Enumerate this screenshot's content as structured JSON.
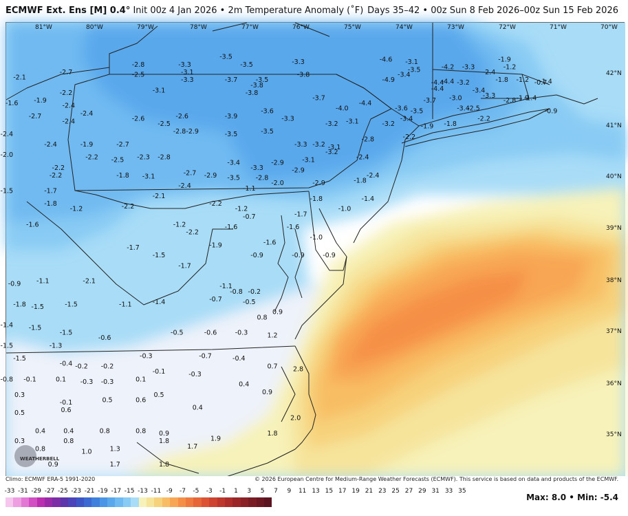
{
  "header": {
    "model": "ECMWF Ext. Ens [M] 0.4°",
    "description": "Init 00z 4 Jan 2026 • 2m Temperature Anomaly (˚F)",
    "valid": "Days 35–42 • 00z Sun 8 Feb 2026–00z Sun 15 Feb 2026"
  },
  "footer": {
    "climo": "Climo: ECMWF ERA-5 1991-2020",
    "copyright": "© 2026 European Centre for Medium-Range Weather Forecasts (ECMWF). This service is based on data and products of the ECMWF.",
    "max_label": "Max:",
    "max_value": "8.0",
    "min_label": "Min:",
    "min_value": "-5.4"
  },
  "logo": {
    "text": "WEATHERBELL"
  },
  "longitude_labels": [
    "81°W",
    "80°W",
    "79°W",
    "78°W",
    "77°W",
    "76°W",
    "75°W",
    "74°W",
    "73°W",
    "72°W",
    "71°W",
    "70°W"
  ],
  "latitude_labels": [
    "42°N",
    "41°N",
    "40°N",
    "39°N",
    "38°N",
    "37°N",
    "36°N",
    "35°N"
  ],
  "colorbar": {
    "labels": [
      "-33",
      "-31",
      "-29",
      "-27",
      "-25",
      "-23",
      "-21",
      "-19",
      "-17",
      "-15",
      "-13",
      "-11",
      "-9",
      "-7",
      "-5",
      "-3",
      "-1",
      "1",
      "3",
      "5",
      "7",
      "9",
      "11",
      "13",
      "15",
      "17",
      "19",
      "21",
      "23",
      "25",
      "27",
      "29",
      "31",
      "33",
      "35"
    ],
    "colors": [
      "#f7c6ef",
      "#ee9fe2",
      "#e277d4",
      "#d24fc3",
      "#b92fb0",
      "#9b2aa8",
      "#7d2ea6",
      "#5e36ab",
      "#4a44b8",
      "#3c56c5",
      "#3a6ad2",
      "#3f80dd",
      "#4b95e6",
      "#5aa8ec",
      "#6fbaf1",
      "#88cbf4",
      "#a8dcf7",
      "#f7f2b9",
      "#f6e49b",
      "#f7d27c",
      "#f8bd64",
      "#f8a653",
      "#f58f47",
      "#ef7a3f",
      "#e66638",
      "#db5333",
      "#cd432f",
      "#bd372c",
      "#ac2d2a",
      "#9b2628",
      "#8a2126",
      "#7a1c24",
      "#6b1822",
      "#5c1420"
    ]
  },
  "map_values": [
    {
      "lon": -81.3,
      "lat": 41.9,
      "v": "-2.1"
    },
    {
      "lon": -80.4,
      "lat": 42.0,
      "v": "-2.7"
    },
    {
      "lon": -79.0,
      "lat": 42.15,
      "v": "-2.8"
    },
    {
      "lon": -79.0,
      "lat": 41.95,
      "v": "-2.5"
    },
    {
      "lon": -80.4,
      "lat": 41.6,
      "v": "-2.2"
    },
    {
      "lon": -81.45,
      "lat": 41.4,
      "v": "-1.6"
    },
    {
      "lon": -80.9,
      "lat": 41.45,
      "v": "-1.9"
    },
    {
      "lon": -80.35,
      "lat": 41.35,
      "v": "-2.4"
    },
    {
      "lon": -80.0,
      "lat": 41.2,
      "v": "-2.4"
    },
    {
      "lon": -81.0,
      "lat": 41.15,
      "v": "-2.7"
    },
    {
      "lon": -80.35,
      "lat": 41.05,
      "v": "-2.4"
    },
    {
      "lon": -81.55,
      "lat": 40.8,
      "v": "-2.4"
    },
    {
      "lon": -80.7,
      "lat": 40.6,
      "v": "-2.4"
    },
    {
      "lon": -80.0,
      "lat": 40.6,
      "v": "-1.9"
    },
    {
      "lon": -81.55,
      "lat": 40.4,
      "v": "-2.0"
    },
    {
      "lon": -79.9,
      "lat": 40.35,
      "v": "-2.2"
    },
    {
      "lon": -80.55,
      "lat": 40.15,
      "v": "-2.2"
    },
    {
      "lon": -79.4,
      "lat": 40.3,
      "v": "-2.5"
    },
    {
      "lon": -79.3,
      "lat": 40.6,
      "v": "-2.7"
    },
    {
      "lon": -78.9,
      "lat": 40.35,
      "v": "-2.3"
    },
    {
      "lon": -78.5,
      "lat": 40.35,
      "v": "-2.8"
    },
    {
      "lon": -79.0,
      "lat": 41.1,
      "v": "-2.6"
    },
    {
      "lon": -78.5,
      "lat": 41.0,
      "v": "-2.5"
    },
    {
      "lon": -78.2,
      "lat": 40.85,
      "v": "-2.8"
    },
    {
      "lon": -77.95,
      "lat": 40.85,
      "v": "-2.9"
    },
    {
      "lon": -78.6,
      "lat": 41.65,
      "v": "-3.1"
    },
    {
      "lon": -78.05,
      "lat": 41.85,
      "v": "-3.3"
    },
    {
      "lon": -78.1,
      "lat": 42.15,
      "v": "-3.3"
    },
    {
      "lon": -78.05,
      "lat": 42.0,
      "v": "-3.1"
    },
    {
      "lon": -78.15,
      "lat": 41.15,
      "v": "-2.6"
    },
    {
      "lon": -77.3,
      "lat": 42.3,
      "v": "-3.5"
    },
    {
      "lon": -76.9,
      "lat": 42.15,
      "v": "-3.5"
    },
    {
      "lon": -77.2,
      "lat": 41.85,
      "v": "-3.7"
    },
    {
      "lon": -76.6,
      "lat": 41.85,
      "v": "-3.5"
    },
    {
      "lon": -76.7,
      "lat": 41.75,
      "v": "-3.8"
    },
    {
      "lon": -76.8,
      "lat": 41.6,
      "v": "-3.8"
    },
    {
      "lon": -75.9,
      "lat": 42.2,
      "v": "-3.3"
    },
    {
      "lon": -75.8,
      "lat": 41.95,
      "v": "-3.8"
    },
    {
      "lon": -77.2,
      "lat": 41.15,
      "v": "-3.9"
    },
    {
      "lon": -76.5,
      "lat": 41.25,
      "v": "-3.6"
    },
    {
      "lon": -76.1,
      "lat": 41.1,
      "v": "-3.3"
    },
    {
      "lon": -77.2,
      "lat": 40.8,
      "v": "-3.5"
    },
    {
      "lon": -76.5,
      "lat": 40.85,
      "v": "-3.5"
    },
    {
      "lon": -75.85,
      "lat": 40.6,
      "v": "-3.3"
    },
    {
      "lon": -77.15,
      "lat": 40.25,
      "v": "-3.4"
    },
    {
      "lon": -76.7,
      "lat": 40.15,
      "v": "-3.3"
    },
    {
      "lon": -76.3,
      "lat": 40.25,
      "v": "-2.9"
    },
    {
      "lon": -77.15,
      "lat": 39.95,
      "v": "-3.5"
    },
    {
      "lon": -76.6,
      "lat": 39.95,
      "v": "-2.8"
    },
    {
      "lon": -75.5,
      "lat": 41.5,
      "v": "-3.7"
    },
    {
      "lon": -75.05,
      "lat": 41.3,
      "v": "-4.0"
    },
    {
      "lon": -74.6,
      "lat": 41.4,
      "v": "-4.4"
    },
    {
      "lon": -75.25,
      "lat": 41.0,
      "v": "-3.2"
    },
    {
      "lon": -74.85,
      "lat": 41.05,
      "v": "-3.1"
    },
    {
      "lon": -75.5,
      "lat": 40.6,
      "v": "-3.2"
    },
    {
      "lon": -75.2,
      "lat": 40.55,
      "v": "-3.1"
    },
    {
      "lon": -75.25,
      "lat": 40.45,
      "v": "-3.2"
    },
    {
      "lon": -75.7,
      "lat": 40.3,
      "v": "-3.1"
    },
    {
      "lon": -74.65,
      "lat": 40.35,
      "v": "-2.4"
    },
    {
      "lon": -74.55,
      "lat": 40.7,
      "v": "-2.8"
    },
    {
      "lon": -75.9,
      "lat": 40.1,
      "v": "-2.9"
    },
    {
      "lon": -75.5,
      "lat": 39.85,
      "v": "-2.9"
    },
    {
      "lon": -75.55,
      "lat": 39.55,
      "v": "-1.8"
    },
    {
      "lon": -74.7,
      "lat": 39.9,
      "v": "-1.8"
    },
    {
      "lon": -74.55,
      "lat": 39.55,
      "v": "-1.4"
    },
    {
      "lon": -74.45,
      "lat": 40.0,
      "v": "-2.4"
    },
    {
      "lon": -75.0,
      "lat": 39.35,
      "v": "-1.0"
    },
    {
      "lon": -75.85,
      "lat": 39.25,
      "v": "-1.7"
    },
    {
      "lon": -76.0,
      "lat": 39.0,
      "v": "-1.6"
    },
    {
      "lon": -75.55,
      "lat": 38.8,
      "v": "-1.0"
    },
    {
      "lon": -75.9,
      "lat": 38.45,
      "v": "-0.9"
    },
    {
      "lon": -75.3,
      "lat": 38.45,
      "v": "-0.9"
    },
    {
      "lon": -76.45,
      "lat": 38.7,
      "v": "-1.6"
    },
    {
      "lon": -76.7,
      "lat": 38.45,
      "v": "-0.9"
    },
    {
      "lon": -74.2,
      "lat": 42.25,
      "v": "-4.6"
    },
    {
      "lon": -74.15,
      "lat": 41.85,
      "v": "-4.9"
    },
    {
      "lon": -73.85,
      "lat": 41.95,
      "v": "-3.4"
    },
    {
      "lon": -73.7,
      "lat": 42.2,
      "v": "-3.1"
    },
    {
      "lon": -73.65,
      "lat": 42.05,
      "v": "-3.5"
    },
    {
      "lon": -73.0,
      "lat": 42.1,
      "v": "-4.2"
    },
    {
      "lon": -72.6,
      "lat": 42.1,
      "v": "-3.3"
    },
    {
      "lon": -72.2,
      "lat": 42.0,
      "v": "-2.4"
    },
    {
      "lon": -73.2,
      "lat": 41.8,
      "v": "-4.4"
    },
    {
      "lon": -73.0,
      "lat": 41.82,
      "v": "-4.4"
    },
    {
      "lon": -73.2,
      "lat": 41.68,
      "v": "-4.4"
    },
    {
      "lon": -72.7,
      "lat": 41.8,
      "v": "-3.2"
    },
    {
      "lon": -73.35,
      "lat": 41.45,
      "v": "-3.7"
    },
    {
      "lon": -72.85,
      "lat": 41.5,
      "v": "-3.0"
    },
    {
      "lon": -72.4,
      "lat": 41.65,
      "v": "-3.4"
    },
    {
      "lon": -72.2,
      "lat": 41.55,
      "v": "-3.3"
    },
    {
      "lon": -71.8,
      "lat": 41.45,
      "v": "-2.8"
    },
    {
      "lon": -71.55,
      "lat": 41.5,
      "v": "-1.9"
    },
    {
      "lon": -71.4,
      "lat": 41.5,
      "v": "-1.4"
    },
    {
      "lon": -71.9,
      "lat": 42.25,
      "v": "-1.9"
    },
    {
      "lon": -71.8,
      "lat": 42.1,
      "v": "-1.2"
    },
    {
      "lon": -71.95,
      "lat": 41.85,
      "v": "-1.8"
    },
    {
      "lon": -71.55,
      "lat": 41.85,
      "v": "-1.2"
    },
    {
      "lon": -71.2,
      "lat": 41.8,
      "v": "-0.7"
    },
    {
      "lon": -71.1,
      "lat": 41.82,
      "v": "-1.4"
    },
    {
      "lon": -71.0,
      "lat": 41.25,
      "v": "-0.9"
    },
    {
      "lon": -73.9,
      "lat": 41.3,
      "v": "-3.6"
    },
    {
      "lon": -73.6,
      "lat": 41.25,
      "v": "-3.5"
    },
    {
      "lon": -73.8,
      "lat": 41.1,
      "v": "-3.4"
    },
    {
      "lon": -72.7,
      "lat": 41.3,
      "v": "-3.4"
    },
    {
      "lon": -72.5,
      "lat": 41.3,
      "v": "-2.5"
    },
    {
      "lon": -72.3,
      "lat": 41.1,
      "v": "-2.2"
    },
    {
      "lon": -74.15,
      "lat": 41.0,
      "v": "-3.2"
    },
    {
      "lon": -73.4,
      "lat": 40.95,
      "v": "-1.9"
    },
    {
      "lon": -72.95,
      "lat": 41.0,
      "v": "-1.8"
    },
    {
      "lon": -73.75,
      "lat": 40.75,
      "v": "-2.2"
    },
    {
      "lon": -79.3,
      "lat": 40.0,
      "v": "-1.8"
    },
    {
      "lon": -78.8,
      "lat": 39.98,
      "v": "-3.1"
    },
    {
      "lon": -78.0,
      "lat": 40.05,
      "v": "-2.7"
    },
    {
      "lon": -77.6,
      "lat": 40.0,
      "v": "-2.9"
    },
    {
      "lon": -78.1,
      "lat": 39.8,
      "v": "-2.4"
    },
    {
      "lon": -80.6,
      "lat": 40.0,
      "v": "-2.2"
    },
    {
      "lon": -81.55,
      "lat": 39.7,
      "v": "-1.5"
    },
    {
      "lon": -80.7,
      "lat": 39.7,
      "v": "-1.7"
    },
    {
      "lon": -80.7,
      "lat": 39.45,
      "v": "-1.8"
    },
    {
      "lon": -80.2,
      "lat": 39.35,
      "v": "-1.2"
    },
    {
      "lon": -79.2,
      "lat": 39.4,
      "v": "-2.2"
    },
    {
      "lon": -78.6,
      "lat": 39.6,
      "v": "-2.1"
    },
    {
      "lon": -77.5,
      "lat": 39.45,
      "v": "-2.2"
    },
    {
      "lon": -77.0,
      "lat": 39.35,
      "v": "-1.2"
    },
    {
      "lon": -76.85,
      "lat": 39.2,
      "v": "-0.7"
    },
    {
      "lon": -76.85,
      "lat": 39.75,
      "v": "-1.1"
    },
    {
      "lon": -76.3,
      "lat": 39.85,
      "v": "-2.0"
    },
    {
      "lon": -77.2,
      "lat": 39.0,
      "v": "-1.6"
    },
    {
      "lon": -81.05,
      "lat": 39.05,
      "v": "-1.6"
    },
    {
      "lon": -78.2,
      "lat": 39.05,
      "v": "-1.2"
    },
    {
      "lon": -77.95,
      "lat": 38.9,
      "v": "-2.2"
    },
    {
      "lon": -77.5,
      "lat": 38.65,
      "v": "-1.9"
    },
    {
      "lon": -79.1,
      "lat": 38.6,
      "v": "-1.7"
    },
    {
      "lon": -78.6,
      "lat": 38.45,
      "v": "-1.5"
    },
    {
      "lon": -78.1,
      "lat": 38.25,
      "v": "-1.7"
    },
    {
      "lon": -81.4,
      "lat": 37.9,
      "v": "-0.9"
    },
    {
      "lon": -80.85,
      "lat": 37.95,
      "v": "-1.1"
    },
    {
      "lon": -79.95,
      "lat": 37.95,
      "v": "-2.1"
    },
    {
      "lon": -77.3,
      "lat": 37.85,
      "v": "-1.1"
    },
    {
      "lon": -77.1,
      "lat": 37.75,
      "v": "-0.8"
    },
    {
      "lon": -76.75,
      "lat": 37.75,
      "v": "-0.2"
    },
    {
      "lon": -77.5,
      "lat": 37.6,
      "v": "-0.7"
    },
    {
      "lon": -76.85,
      "lat": 37.55,
      "v": "-0.5"
    },
    {
      "lon": -76.6,
      "lat": 37.25,
      "v": "0.8"
    },
    {
      "lon": -76.3,
      "lat": 37.35,
      "v": "0.9"
    },
    {
      "lon": -81.3,
      "lat": 37.5,
      "v": "-1.8"
    },
    {
      "lon": -80.95,
      "lat": 37.45,
      "v": "-1.5"
    },
    {
      "lon": -80.3,
      "lat": 37.5,
      "v": "-1.5"
    },
    {
      "lon": -79.25,
      "lat": 37.5,
      "v": "-1.1"
    },
    {
      "lon": -78.6,
      "lat": 37.55,
      "v": "-1.4"
    },
    {
      "lon": -81.55,
      "lat": 37.1,
      "v": "-1.4"
    },
    {
      "lon": -81.0,
      "lat": 37.05,
      "v": "-1.5"
    },
    {
      "lon": -80.4,
      "lat": 36.95,
      "v": "-1.5"
    },
    {
      "lon": -81.55,
      "lat": 36.7,
      "v": "-1.5"
    },
    {
      "lon": -80.6,
      "lat": 36.7,
      "v": "-1.3"
    },
    {
      "lon": -79.65,
      "lat": 36.85,
      "v": "-0.6"
    },
    {
      "lon": -78.25,
      "lat": 36.95,
      "v": "-0.5"
    },
    {
      "lon": -77.6,
      "lat": 36.95,
      "v": "-0.6"
    },
    {
      "lon": -77.0,
      "lat": 36.95,
      "v": "-0.3"
    },
    {
      "lon": -76.4,
      "lat": 36.9,
      "v": "1.2"
    },
    {
      "lon": -81.3,
      "lat": 36.45,
      "v": "-1.5"
    },
    {
      "lon": -80.4,
      "lat": 36.35,
      "v": "-0.4"
    },
    {
      "lon": -80.1,
      "lat": 36.3,
      "v": "-0.2"
    },
    {
      "lon": -79.6,
      "lat": 36.3,
      "v": "-0.2"
    },
    {
      "lon": -78.85,
      "lat": 36.5,
      "v": "-0.3"
    },
    {
      "lon": -77.7,
      "lat": 36.5,
      "v": "-0.7"
    },
    {
      "lon": -77.05,
      "lat": 36.45,
      "v": "-0.4"
    },
    {
      "lon": -78.6,
      "lat": 36.2,
      "v": "-0.1"
    },
    {
      "lon": -77.9,
      "lat": 36.15,
      "v": "-0.3"
    },
    {
      "lon": -81.55,
      "lat": 36.05,
      "v": "-0.8"
    },
    {
      "lon": -81.1,
      "lat": 36.05,
      "v": "-0.1"
    },
    {
      "lon": -80.5,
      "lat": 36.05,
      "v": "0.1"
    },
    {
      "lon": -80.0,
      "lat": 36.0,
      "v": "-0.3"
    },
    {
      "lon": -79.6,
      "lat": 36.0,
      "v": "-0.3"
    },
    {
      "lon": -78.95,
      "lat": 36.05,
      "v": "0.1"
    },
    {
      "lon": -76.95,
      "lat": 35.95,
      "v": "0.4"
    },
    {
      "lon": -76.4,
      "lat": 36.3,
      "v": "0.7"
    },
    {
      "lon": -75.9,
      "lat": 36.25,
      "v": "2.8"
    },
    {
      "lon": -81.3,
      "lat": 35.75,
      "v": "0.3"
    },
    {
      "lon": -80.4,
      "lat": 35.6,
      "v": "-0.1"
    },
    {
      "lon": -79.6,
      "lat": 35.65,
      "v": "0.5"
    },
    {
      "lon": -78.95,
      "lat": 35.65,
      "v": "0.6"
    },
    {
      "lon": -78.6,
      "lat": 35.75,
      "v": "0.5"
    },
    {
      "lon": -77.85,
      "lat": 35.5,
      "v": "0.4"
    },
    {
      "lon": -76.5,
      "lat": 35.8,
      "v": "0.9"
    },
    {
      "lon": -81.3,
      "lat": 35.4,
      "v": "0.5"
    },
    {
      "lon": -80.4,
      "lat": 35.45,
      "v": "0.6"
    },
    {
      "lon": -80.9,
      "lat": 35.05,
      "v": "0.4"
    },
    {
      "lon": -80.35,
      "lat": 35.05,
      "v": "0.4"
    },
    {
      "lon": -79.65,
      "lat": 35.05,
      "v": "0.8"
    },
    {
      "lon": -78.95,
      "lat": 35.05,
      "v": "0.8"
    },
    {
      "lon": -78.5,
      "lat": 35.0,
      "v": "0.9"
    },
    {
      "lon": -76.4,
      "lat": 35.0,
      "v": "1.8"
    },
    {
      "lon": -75.95,
      "lat": 35.3,
      "v": "2.0"
    },
    {
      "lon": -81.3,
      "lat": 34.85,
      "v": "0.3"
    },
    {
      "lon": -80.9,
      "lat": 34.7,
      "v": "0.8"
    },
    {
      "lon": -80.35,
      "lat": 34.85,
      "v": "0.8"
    },
    {
      "lon": -80.0,
      "lat": 34.65,
      "v": "1.0"
    },
    {
      "lon": -79.45,
      "lat": 34.7,
      "v": "1.3"
    },
    {
      "lon": -78.5,
      "lat": 34.85,
      "v": "1.8"
    },
    {
      "lon": -80.65,
      "lat": 34.4,
      "v": "0.9"
    },
    {
      "lon": -79.45,
      "lat": 34.4,
      "v": "1.7"
    },
    {
      "lon": -78.5,
      "lat": 34.4,
      "v": "1.8"
    },
    {
      "lon": -77.95,
      "lat": 34.75,
      "v": "1.7"
    },
    {
      "lon": -77.5,
      "lat": 34.9,
      "v": "1.9"
    }
  ]
}
